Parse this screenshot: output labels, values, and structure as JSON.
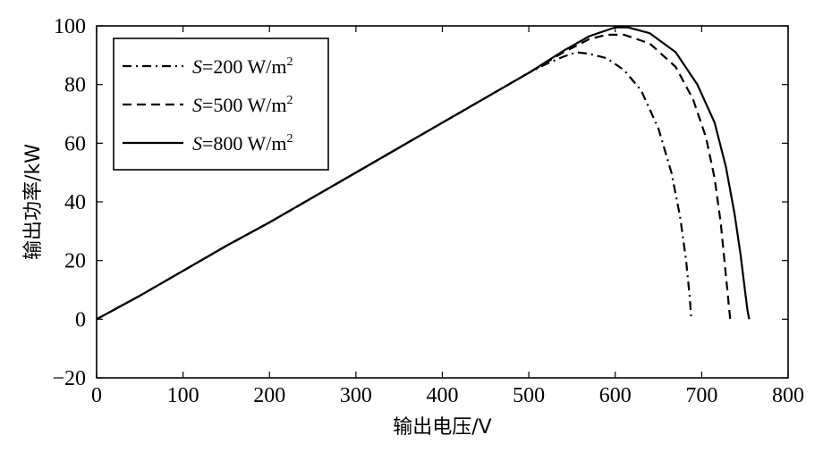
{
  "chart_data": {
    "type": "line",
    "title": "",
    "xlabel": "输出电压/V",
    "ylabel": "输出功率/kW",
    "xlim": [
      0,
      800
    ],
    "ylim": [
      -20,
      100
    ],
    "x_ticks": [
      "0",
      "100",
      "200",
      "300",
      "400",
      "500",
      "600",
      "700",
      "800"
    ],
    "y_ticks": [
      "100",
      "80",
      "60",
      "40",
      "20",
      "0",
      "−20"
    ],
    "grid": false,
    "legend_position": "top-left",
    "series": [
      {
        "name": "S=200 W/m2",
        "legend": {
          "s": "S",
          "value": "=200 W/m",
          "sup": "2"
        },
        "line_style": "dashdot",
        "color": "#000000",
        "points": [
          [
            0,
            0
          ],
          [
            50,
            8
          ],
          [
            100,
            16.5
          ],
          [
            150,
            25
          ],
          [
            200,
            33
          ],
          [
            250,
            41.5
          ],
          [
            300,
            50
          ],
          [
            350,
            58.5
          ],
          [
            400,
            67
          ],
          [
            450,
            75.5
          ],
          [
            500,
            84
          ],
          [
            520,
            87
          ],
          [
            540,
            89.5
          ],
          [
            555,
            91
          ],
          [
            570,
            90.5
          ],
          [
            590,
            89
          ],
          [
            610,
            85
          ],
          [
            630,
            78
          ],
          [
            650,
            65
          ],
          [
            665,
            50
          ],
          [
            675,
            35
          ],
          [
            682,
            20
          ],
          [
            686,
            8
          ],
          [
            688,
            0
          ]
        ]
      },
      {
        "name": "S=500 W/m2",
        "legend": {
          "s": "S",
          "value": "=500 W/m",
          "sup": "2"
        },
        "line_style": "dashed",
        "color": "#000000",
        "points": [
          [
            0,
            0
          ],
          [
            50,
            8
          ],
          [
            100,
            16.5
          ],
          [
            150,
            25
          ],
          [
            200,
            33
          ],
          [
            250,
            41.5
          ],
          [
            300,
            50
          ],
          [
            350,
            58.5
          ],
          [
            400,
            67
          ],
          [
            450,
            75.5
          ],
          [
            500,
            84
          ],
          [
            540,
            91
          ],
          [
            570,
            95.5
          ],
          [
            590,
            97
          ],
          [
            610,
            97
          ],
          [
            640,
            94
          ],
          [
            670,
            86
          ],
          [
            690,
            75
          ],
          [
            705,
            62
          ],
          [
            715,
            48
          ],
          [
            722,
            33
          ],
          [
            727,
            18
          ],
          [
            731,
            6
          ],
          [
            733,
            0
          ]
        ]
      },
      {
        "name": "S=800 W/m2",
        "legend": {
          "s": "S",
          "value": "=800 W/m",
          "sup": "2"
        },
        "line_style": "solid",
        "color": "#000000",
        "points": [
          [
            0,
            0
          ],
          [
            50,
            8
          ],
          [
            100,
            16.5
          ],
          [
            150,
            25
          ],
          [
            200,
            33
          ],
          [
            250,
            41.5
          ],
          [
            300,
            50
          ],
          [
            350,
            58.5
          ],
          [
            400,
            67
          ],
          [
            450,
            75.5
          ],
          [
            500,
            84
          ],
          [
            540,
            91.5
          ],
          [
            570,
            96.5
          ],
          [
            600,
            99.5
          ],
          [
            615,
            99.5
          ],
          [
            640,
            97.5
          ],
          [
            670,
            91
          ],
          [
            695,
            80
          ],
          [
            715,
            67
          ],
          [
            728,
            52
          ],
          [
            738,
            36
          ],
          [
            745,
            22
          ],
          [
            750,
            10
          ],
          [
            753,
            3
          ],
          [
            755,
            0
          ]
        ]
      }
    ]
  }
}
